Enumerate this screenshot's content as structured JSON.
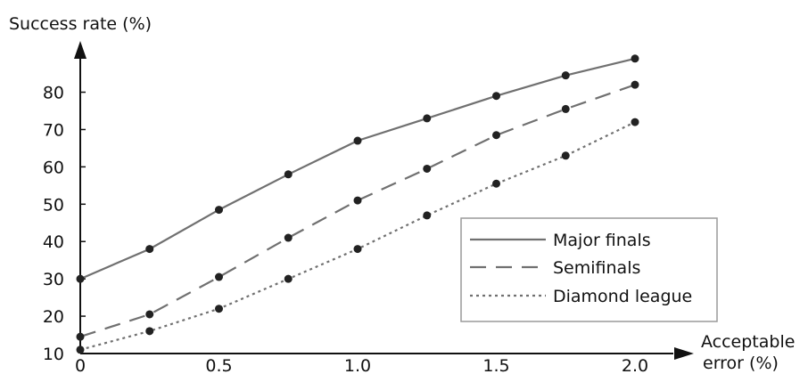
{
  "chart_data": {
    "type": "line",
    "ylabel": "Success rate (%)",
    "xlabel": "Acceptable error (%)",
    "xlabel_lines": [
      "Acceptable",
      "error (%)"
    ],
    "x": [
      0,
      0.25,
      0.5,
      0.75,
      1.0,
      1.25,
      1.5,
      1.75,
      2.0
    ],
    "xlim": [
      0,
      2.0
    ],
    "ylim": [
      10,
      88
    ],
    "xticks": [
      0,
      0.5,
      1.0,
      1.5,
      2.0
    ],
    "xtick_labels": [
      "0",
      "0.5",
      "1.0",
      "1.5",
      "2.0"
    ],
    "yticks": [
      10,
      20,
      30,
      40,
      50,
      60,
      70,
      80
    ],
    "ytick_labels": [
      "10",
      "20",
      "30",
      "40",
      "50",
      "60",
      "70",
      "80"
    ],
    "grid": false,
    "legend_position": "bottom-right",
    "series": [
      {
        "name": "Major finals",
        "style": "solid",
        "color": "#707070",
        "values": [
          30,
          38,
          48.5,
          58,
          67,
          73,
          79,
          84.5,
          89
        ]
      },
      {
        "name": "Semifinals",
        "style": "dashed",
        "color": "#707070",
        "values": [
          14.5,
          20.5,
          30.5,
          41,
          51,
          59.5,
          68.5,
          75.5,
          82
        ]
      },
      {
        "name": "Diamond league",
        "style": "dotted",
        "color": "#707070",
        "values": [
          11,
          16,
          22,
          30,
          38,
          47,
          55.5,
          63,
          72
        ]
      }
    ],
    "marker_color": "#222222"
  }
}
